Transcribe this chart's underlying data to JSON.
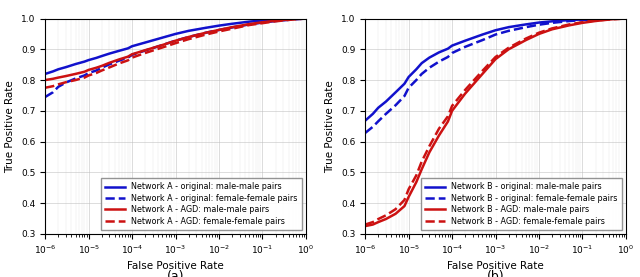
{
  "subplot_a": {
    "title": "(a)",
    "xlabel": "False Positive Rate",
    "ylabel": "True Positive Rate",
    "ylim": [
      0.3,
      1.0
    ],
    "xlim_log": [
      -6,
      0
    ],
    "curves": [
      {
        "label": "Network A - original: male-male pairs",
        "color": "#1111cc",
        "linestyle": "solid",
        "linewidth": 1.8,
        "points_x": [
          1e-06,
          1.5e-06,
          2e-06,
          3e-06,
          5e-06,
          8e-06,
          1e-05,
          1.5e-05,
          2e-05,
          3e-05,
          5e-05,
          8e-05,
          0.0001,
          0.0002,
          0.0005,
          0.001,
          0.002,
          0.005,
          0.01,
          0.02,
          0.05,
          0.1,
          0.2,
          0.5,
          1.0
        ],
        "points_y": [
          0.82,
          0.828,
          0.835,
          0.842,
          0.852,
          0.86,
          0.865,
          0.872,
          0.878,
          0.886,
          0.895,
          0.903,
          0.91,
          0.922,
          0.938,
          0.95,
          0.96,
          0.97,
          0.977,
          0.983,
          0.99,
          0.994,
          0.997,
          0.999,
          1.0
        ]
      },
      {
        "label": "Network A - original: female-female pairs",
        "color": "#1111cc",
        "linestyle": "dashed",
        "linewidth": 1.8,
        "points_x": [
          1e-06,
          1.5e-06,
          2e-06,
          3e-06,
          5e-06,
          8e-06,
          1e-05,
          1.5e-05,
          2e-05,
          3e-05,
          5e-05,
          8e-05,
          0.0001,
          0.0002,
          0.0005,
          0.001,
          0.002,
          0.005,
          0.01,
          0.02,
          0.05,
          0.1,
          0.2,
          0.5,
          1.0
        ],
        "points_y": [
          0.745,
          0.76,
          0.778,
          0.792,
          0.805,
          0.815,
          0.823,
          0.831,
          0.84,
          0.851,
          0.863,
          0.873,
          0.882,
          0.896,
          0.914,
          0.928,
          0.94,
          0.954,
          0.963,
          0.971,
          0.981,
          0.987,
          0.992,
          0.997,
          1.0
        ]
      },
      {
        "label": "Network A - AGD: male-male pairs",
        "color": "#cc1111",
        "linestyle": "solid",
        "linewidth": 1.8,
        "points_x": [
          1e-06,
          1.5e-06,
          2e-06,
          3e-06,
          5e-06,
          8e-06,
          1e-05,
          1.5e-05,
          2e-05,
          3e-05,
          5e-05,
          8e-05,
          0.0001,
          0.0002,
          0.0005,
          0.001,
          0.002,
          0.005,
          0.01,
          0.02,
          0.05,
          0.1,
          0.2,
          0.5,
          1.0
        ],
        "points_y": [
          0.8,
          0.804,
          0.808,
          0.813,
          0.82,
          0.827,
          0.833,
          0.84,
          0.846,
          0.856,
          0.867,
          0.876,
          0.884,
          0.897,
          0.914,
          0.928,
          0.94,
          0.954,
          0.963,
          0.972,
          0.982,
          0.988,
          0.993,
          0.998,
          1.0
        ]
      },
      {
        "label": "Network A - AGD: female-female pairs",
        "color": "#cc1111",
        "linestyle": "dashed",
        "linewidth": 1.8,
        "points_x": [
          1e-06,
          1.5e-06,
          2e-06,
          3e-06,
          5e-06,
          8e-06,
          1e-05,
          1.5e-05,
          2e-05,
          3e-05,
          5e-05,
          8e-05,
          0.0001,
          0.0002,
          0.0005,
          0.001,
          0.002,
          0.005,
          0.01,
          0.02,
          0.05,
          0.1,
          0.2,
          0.5,
          1.0
        ],
        "points_y": [
          0.775,
          0.78,
          0.786,
          0.793,
          0.8,
          0.808,
          0.815,
          0.823,
          0.831,
          0.841,
          0.854,
          0.864,
          0.873,
          0.888,
          0.906,
          0.92,
          0.933,
          0.948,
          0.958,
          0.967,
          0.979,
          0.985,
          0.991,
          0.997,
          1.0
        ]
      }
    ]
  },
  "subplot_b": {
    "title": "(b)",
    "xlabel": "False Positive Rate",
    "ylabel": "True Positive Rate",
    "ylim": [
      0.3,
      1.0
    ],
    "xlim_log": [
      -6,
      0
    ],
    "curves": [
      {
        "label": "Network B - original: male-male pairs",
        "color": "#1111cc",
        "linestyle": "solid",
        "linewidth": 1.8,
        "points_x": [
          1e-06,
          1.5e-06,
          2e-06,
          3e-06,
          5e-06,
          8e-06,
          1e-05,
          1.5e-05,
          2e-05,
          3e-05,
          5e-05,
          8e-05,
          0.0001,
          0.0002,
          0.0005,
          0.001,
          0.002,
          0.005,
          0.01,
          0.02,
          0.05,
          0.1,
          0.2,
          0.5,
          1.0
        ],
        "points_y": [
          0.668,
          0.69,
          0.71,
          0.73,
          0.76,
          0.788,
          0.81,
          0.835,
          0.855,
          0.873,
          0.89,
          0.902,
          0.912,
          0.928,
          0.948,
          0.962,
          0.972,
          0.981,
          0.987,
          0.991,
          0.995,
          0.997,
          0.999,
          1.0,
          1.0
        ]
      },
      {
        "label": "Network B - original: female-female pairs",
        "color": "#1111cc",
        "linestyle": "dashed",
        "linewidth": 1.8,
        "points_x": [
          1e-06,
          1.5e-06,
          2e-06,
          3e-06,
          5e-06,
          8e-06,
          1e-05,
          1.5e-05,
          2e-05,
          3e-05,
          5e-05,
          8e-05,
          0.0001,
          0.0002,
          0.0005,
          0.001,
          0.002,
          0.005,
          0.01,
          0.02,
          0.05,
          0.1,
          0.2,
          0.5,
          1.0
        ],
        "points_y": [
          0.628,
          0.648,
          0.666,
          0.69,
          0.718,
          0.748,
          0.775,
          0.8,
          0.82,
          0.84,
          0.86,
          0.875,
          0.888,
          0.908,
          0.93,
          0.948,
          0.96,
          0.972,
          0.98,
          0.986,
          0.992,
          0.995,
          0.998,
          1.0,
          1.0
        ]
      },
      {
        "label": "Network B - AGD: male-male pairs",
        "color": "#cc1111",
        "linestyle": "solid",
        "linewidth": 1.8,
        "points_x": [
          1e-06,
          1.5e-06,
          2e-06,
          3e-06,
          5e-06,
          8e-06,
          1e-05,
          1.5e-05,
          2e-05,
          3e-05,
          5e-05,
          8e-05,
          0.0001,
          0.0002,
          0.0005,
          0.001,
          0.002,
          0.005,
          0.01,
          0.02,
          0.05,
          0.1,
          0.2,
          0.5,
          1.0
        ],
        "points_y": [
          0.325,
          0.33,
          0.338,
          0.348,
          0.365,
          0.39,
          0.42,
          0.468,
          0.51,
          0.565,
          0.62,
          0.665,
          0.7,
          0.756,
          0.82,
          0.868,
          0.9,
          0.93,
          0.95,
          0.965,
          0.978,
          0.986,
          0.992,
          0.998,
          1.0
        ]
      },
      {
        "label": "Network B - AGD: female-female pairs",
        "color": "#cc1111",
        "linestyle": "dashed",
        "linewidth": 1.8,
        "points_x": [
          1e-06,
          1.5e-06,
          2e-06,
          3e-06,
          5e-06,
          8e-06,
          1e-05,
          1.5e-05,
          2e-05,
          3e-05,
          5e-05,
          8e-05,
          0.0001,
          0.0002,
          0.0005,
          0.001,
          0.002,
          0.005,
          0.01,
          0.02,
          0.05,
          0.1,
          0.2,
          0.5,
          1.0
        ],
        "points_y": [
          0.33,
          0.338,
          0.348,
          0.36,
          0.38,
          0.41,
          0.445,
          0.49,
          0.535,
          0.585,
          0.642,
          0.682,
          0.716,
          0.768,
          0.83,
          0.875,
          0.905,
          0.935,
          0.954,
          0.968,
          0.981,
          0.988,
          0.994,
          0.998,
          1.0
        ]
      }
    ]
  },
  "fig_width": 6.4,
  "fig_height": 2.77,
  "dpi": 100,
  "legend_fontsize": 5.8,
  "axis_fontsize": 7.5,
  "tick_fontsize": 6.5,
  "title_fontsize": 9,
  "background_color": "#ffffff",
  "grid_color": "#bbbbbb",
  "grid_alpha": 0.7
}
